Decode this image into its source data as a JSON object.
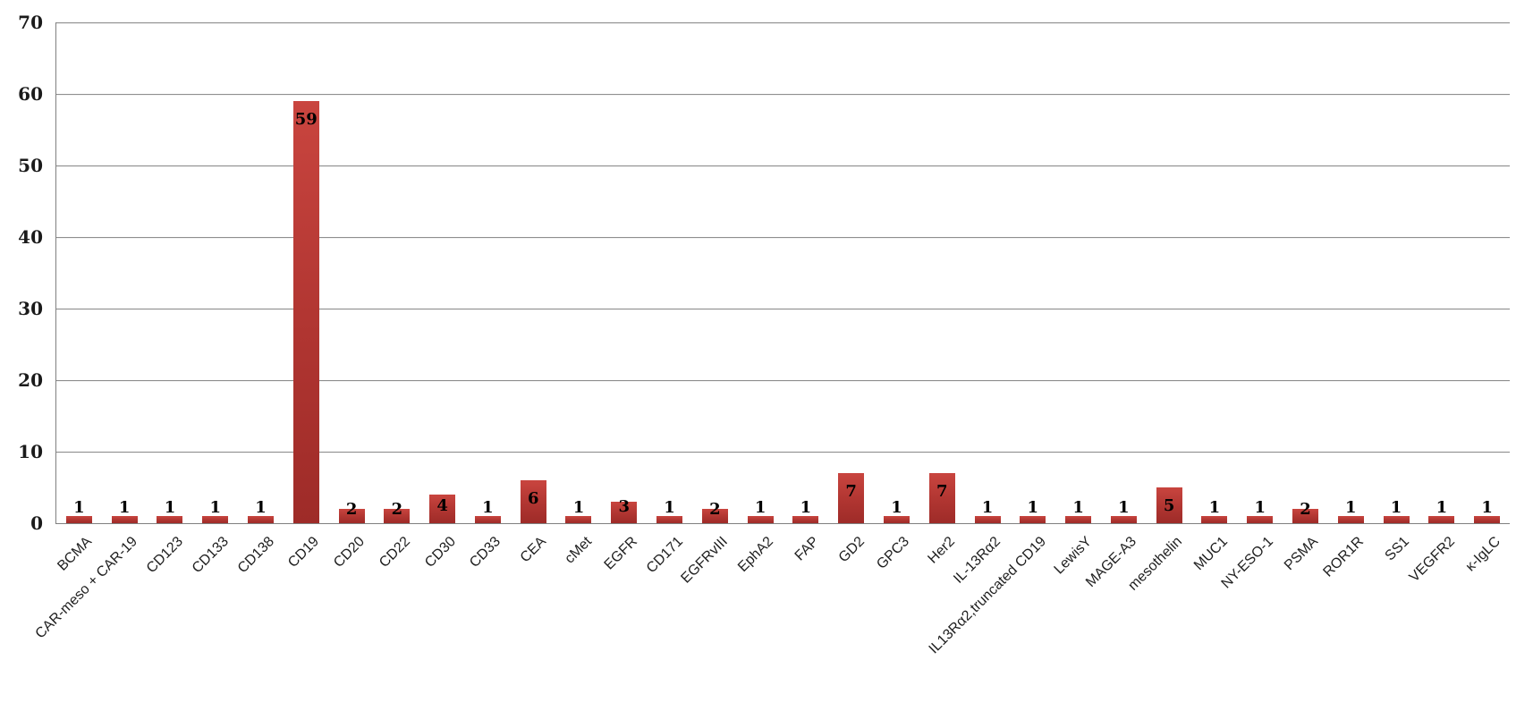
{
  "chart_data": {
    "type": "bar",
    "title": "",
    "xlabel": "",
    "ylabel": "",
    "categories": [
      "BCMA",
      "CAR-meso + CAR-19",
      "CD123",
      "CD133",
      "CD138",
      "CD19",
      "CD20",
      "CD22",
      "CD30",
      "CD33",
      "CEA",
      "cMet",
      "EGFR",
      "CD171",
      "EGFRvIII",
      "EphA2",
      "FAP",
      "GD2",
      "GPC3",
      "Her2",
      "IL-13Rα2",
      "IL13Rα2,truncated CD19",
      "LewisY",
      "MAGE-A3",
      "mesothelin",
      "MUC1",
      "NY-ESO-1",
      "PSMA",
      "ROR1R",
      "SS1",
      "VEGFR2",
      "κ-IgLC"
    ],
    "values": [
      1,
      1,
      1,
      1,
      1,
      59,
      2,
      2,
      4,
      1,
      6,
      1,
      3,
      1,
      2,
      1,
      1,
      7,
      1,
      7,
      1,
      1,
      1,
      1,
      5,
      1,
      1,
      2,
      1,
      1,
      1,
      1
    ],
    "data_labels": "inside-end",
    "ylim": [
      0,
      70
    ],
    "ytick_step": 10,
    "grid": true,
    "legend": false,
    "colors": {
      "bar_top": "#c9453f",
      "bar_bottom": "#9e2b28",
      "gridline": "#8f8f8f",
      "axis": "#808080",
      "value_label": "#000000",
      "tick_label": "#1a1a1a"
    }
  }
}
